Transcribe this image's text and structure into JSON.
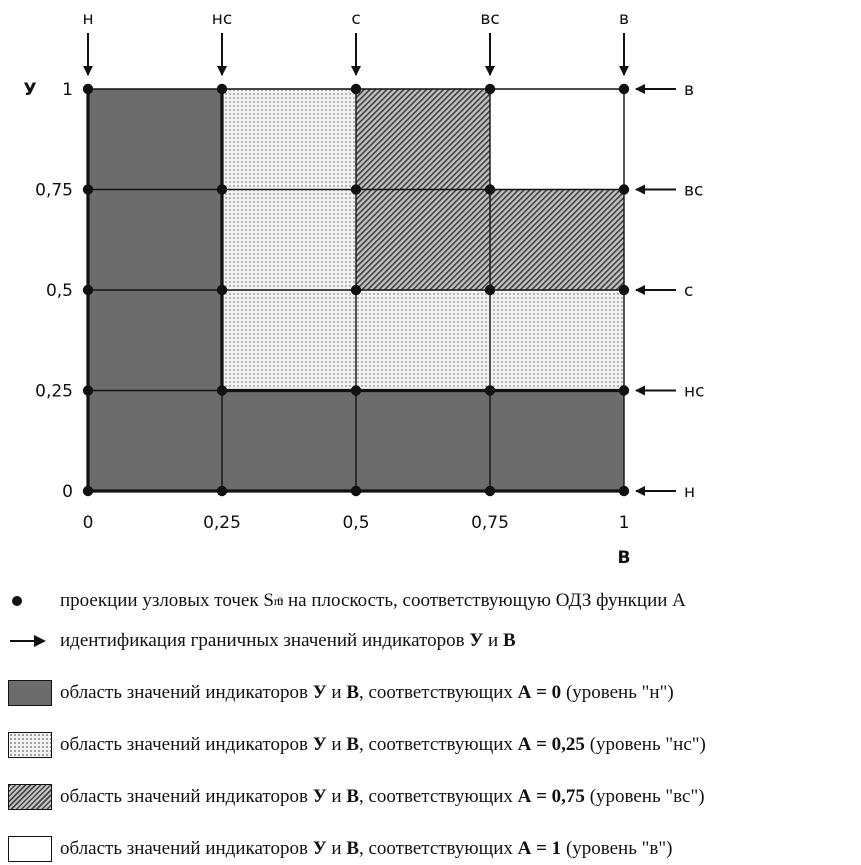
{
  "chart_data": {
    "type": "heatmap",
    "x_axis": {
      "title": "В",
      "ticks": [
        0,
        0.25,
        0.5,
        0.75,
        1
      ],
      "tick_labels": [
        "0",
        "0,25",
        "0,5",
        "0,75",
        "1"
      ]
    },
    "y_axis": {
      "title": "У",
      "ticks": [
        0,
        0.25,
        0.5,
        0.75,
        1
      ],
      "tick_labels": [
        "0",
        "0,25",
        "0,5",
        "0,75",
        "1"
      ]
    },
    "top_levels": [
      "н",
      "нс",
      "с",
      "вс",
      "в"
    ],
    "right_levels": [
      "н",
      "нс",
      "с",
      "вс",
      "в"
    ],
    "cells": [
      {
        "x": [
          0,
          0.25
        ],
        "y": [
          0,
          0.25
        ],
        "A": 0
      },
      {
        "x": [
          0.25,
          0.5
        ],
        "y": [
          0,
          0.25
        ],
        "A": 0
      },
      {
        "x": [
          0.5,
          0.75
        ],
        "y": [
          0,
          0.25
        ],
        "A": 0
      },
      {
        "x": [
          0.75,
          1
        ],
        "y": [
          0,
          0.25
        ],
        "A": 0
      },
      {
        "x": [
          0,
          0.25
        ],
        "y": [
          0.25,
          0.5
        ],
        "A": 0
      },
      {
        "x": [
          0.25,
          0.5
        ],
        "y": [
          0.25,
          0.5
        ],
        "A": 0.25
      },
      {
        "x": [
          0.5,
          0.75
        ],
        "y": [
          0.25,
          0.5
        ],
        "A": 0.25
      },
      {
        "x": [
          0.75,
          1
        ],
        "y": [
          0.25,
          0.5
        ],
        "A": 0.25
      },
      {
        "x": [
          0,
          0.25
        ],
        "y": [
          0.5,
          0.75
        ],
        "A": 0
      },
      {
        "x": [
          0.25,
          0.5
        ],
        "y": [
          0.5,
          0.75
        ],
        "A": 0.25
      },
      {
        "x": [
          0.5,
          0.75
        ],
        "y": [
          0.5,
          0.75
        ],
        "A": 0.75
      },
      {
        "x": [
          0.75,
          1
        ],
        "y": [
          0.5,
          0.75
        ],
        "A": 0.75
      },
      {
        "x": [
          0,
          0.25
        ],
        "y": [
          0.75,
          1
        ],
        "A": 0
      },
      {
        "x": [
          0.25,
          0.5
        ],
        "y": [
          0.75,
          1
        ],
        "A": 0.25
      },
      {
        "x": [
          0.5,
          0.75
        ],
        "y": [
          0.75,
          1
        ],
        "A": 0.75
      },
      {
        "x": [
          0.75,
          1
        ],
        "y": [
          0.75,
          1
        ],
        "A": 1
      }
    ],
    "node_points": "5x5 grid at all tick intersections",
    "fill_by_A": {
      "0": "dark-gray",
      "0.25": "dotted",
      "0.75": "hatched",
      "1": "white"
    }
  },
  "legend": {
    "points": {
      "text": "проекции узловых точек",
      "symbol": "S",
      "sub": "m",
      "sup": "0",
      "text2": "на плоскость, соответствующую ОДЗ функции А"
    },
    "arrows": {
      "text": "идентификация граничных значений индикаторов",
      "u": "У",
      "and": "и",
      "v": "В"
    },
    "rows": [
      {
        "pre": "область значений индикаторов",
        "u": "У",
        "and": "и",
        "v": "В",
        "mid": ", соответствующих",
        "a": "А = 0",
        "post": "(уровень \"н\")"
      },
      {
        "pre": "область значений индикаторов",
        "u": "У",
        "and": "и",
        "v": "В",
        "mid": ", соответствующих",
        "a": "А = 0,25",
        "post": "(уровень \"нс\")"
      },
      {
        "pre": "область значений индикаторов",
        "u": "У",
        "and": "и",
        "v": "В",
        "mid": ", соответствующих",
        "a": "А = 0,75",
        "post": "(уровень \"вс\")"
      },
      {
        "pre": "область значений индикаторов",
        "u": "У",
        "and": "и",
        "v": "В",
        "mid": ", соответствующих",
        "a": "А = 1",
        "post": "(уровень \"в\")"
      }
    ]
  },
  "colors": {
    "dark": "#6c6c6c",
    "dot_bg": "#f2f2f2",
    "dot": "#8a8a8a",
    "hatch_bg": "#c4c4c4",
    "hatch_line": "#444444",
    "white": "#ffffff",
    "ink": "#111111"
  }
}
